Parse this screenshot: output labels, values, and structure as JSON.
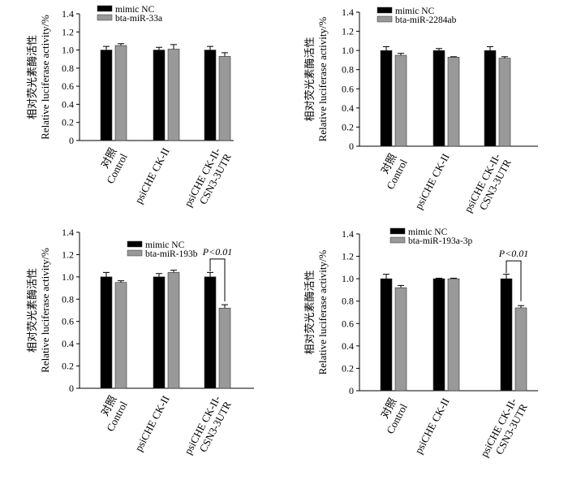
{
  "chart_data": [
    {
      "type": "bar",
      "panel": "top-left",
      "ylabel": [
        "相对荧光素酶活性",
        "Relative luciferase activity/%"
      ],
      "ylim": [
        0,
        1.4
      ],
      "yticks": [
        "0",
        "0.2",
        "0.4",
        "0.6",
        "0.8",
        "1.0",
        "1.2",
        "1.4"
      ],
      "categories": [
        [
          "对照",
          "Control"
        ],
        [
          "psiCHE CK-II"
        ],
        [
          "psiCHE CK-II-",
          "CSN3-3UTR"
        ]
      ],
      "series": [
        {
          "name": "mimic NC",
          "color": "#000000",
          "values": [
            1.0,
            1.0,
            1.0
          ],
          "errors": [
            0.04,
            0.03,
            0.04
          ]
        },
        {
          "name": "bta-miR-33a",
          "color": "#999999",
          "values": [
            1.05,
            1.01,
            0.93
          ],
          "errors": [
            0.02,
            0.05,
            0.04
          ]
        }
      ],
      "legend": "top-left",
      "annotation": null
    },
    {
      "type": "bar",
      "panel": "top-right",
      "ylabel": [
        "相对荧光素酶活性",
        "Relative luciferase activity/%"
      ],
      "ylim": [
        0,
        1.4
      ],
      "yticks": [
        "0",
        "0.2",
        "0.4",
        "0.6",
        "0.8",
        "1.0",
        "1.2",
        "1.4"
      ],
      "categories": [
        [
          "对照",
          "Control"
        ],
        [
          "psiCHE CK-II"
        ],
        [
          "psiCHE CK-II-",
          "CSN3-3UTR"
        ]
      ],
      "series": [
        {
          "name": "mimic NC",
          "color": "#000000",
          "values": [
            1.0,
            1.0,
            1.0
          ],
          "errors": [
            0.04,
            0.02,
            0.04
          ]
        },
        {
          "name": "bta-miR-2284ab",
          "color": "#999999",
          "values": [
            0.95,
            0.93,
            0.92
          ],
          "errors": [
            0.02,
            0.005,
            0.015
          ]
        }
      ],
      "legend": "top-left",
      "annotation": null
    },
    {
      "type": "bar",
      "panel": "bottom-left",
      "ylabel": [
        "相对荧光素酶活性",
        "Relative luciferase activity/%"
      ],
      "ylim": [
        0,
        1.4
      ],
      "yticks": [
        "0",
        "0.2",
        "0.4",
        "0.6",
        "0.8",
        "1.0",
        "1.2",
        "1.4"
      ],
      "categories": [
        [
          "对照",
          "Control"
        ],
        [
          "psiCHE CK-II"
        ],
        [
          "psiCHE CK-II-",
          "CSN3-3UTR"
        ]
      ],
      "series": [
        {
          "name": "mimic NC",
          "color": "#000000",
          "values": [
            1.0,
            1.0,
            1.0
          ],
          "errors": [
            0.04,
            0.03,
            0.04
          ]
        },
        {
          "name": "bta-miR-193b",
          "color": "#999999",
          "values": [
            0.95,
            1.04,
            0.72
          ],
          "errors": [
            0.015,
            0.02,
            0.03
          ]
        }
      ],
      "legend": "top-center",
      "annotation": {
        "text": "P<0.01",
        "group": 2
      }
    },
    {
      "type": "bar",
      "panel": "bottom-right",
      "ylabel": [
        "相对荧光素酶活性",
        "Relative luciferase activity/%"
      ],
      "ylim": [
        0,
        1.4
      ],
      "yticks": [
        "0",
        "0.2",
        "0.4",
        "0.6",
        "0.8",
        "1.0",
        "1.2",
        "1.4"
      ],
      "categories": [
        [
          "对照",
          "Control"
        ],
        [
          "psiCHE CK-II"
        ],
        [
          "psiCHE CK-II-",
          "CSN3-3UTR"
        ]
      ],
      "series": [
        {
          "name": "mimic NC",
          "color": "#000000",
          "values": [
            1.0,
            1.0,
            1.0
          ],
          "errors": [
            0.04,
            0.005,
            0.04
          ]
        },
        {
          "name": "bta-miR-193a-3p",
          "color": "#999999",
          "values": [
            0.92,
            1.0,
            0.74
          ],
          "errors": [
            0.02,
            0.005,
            0.02
          ]
        }
      ],
      "legend": "top-left",
      "annotation": {
        "text": "P<0.01",
        "group": 2
      }
    }
  ]
}
